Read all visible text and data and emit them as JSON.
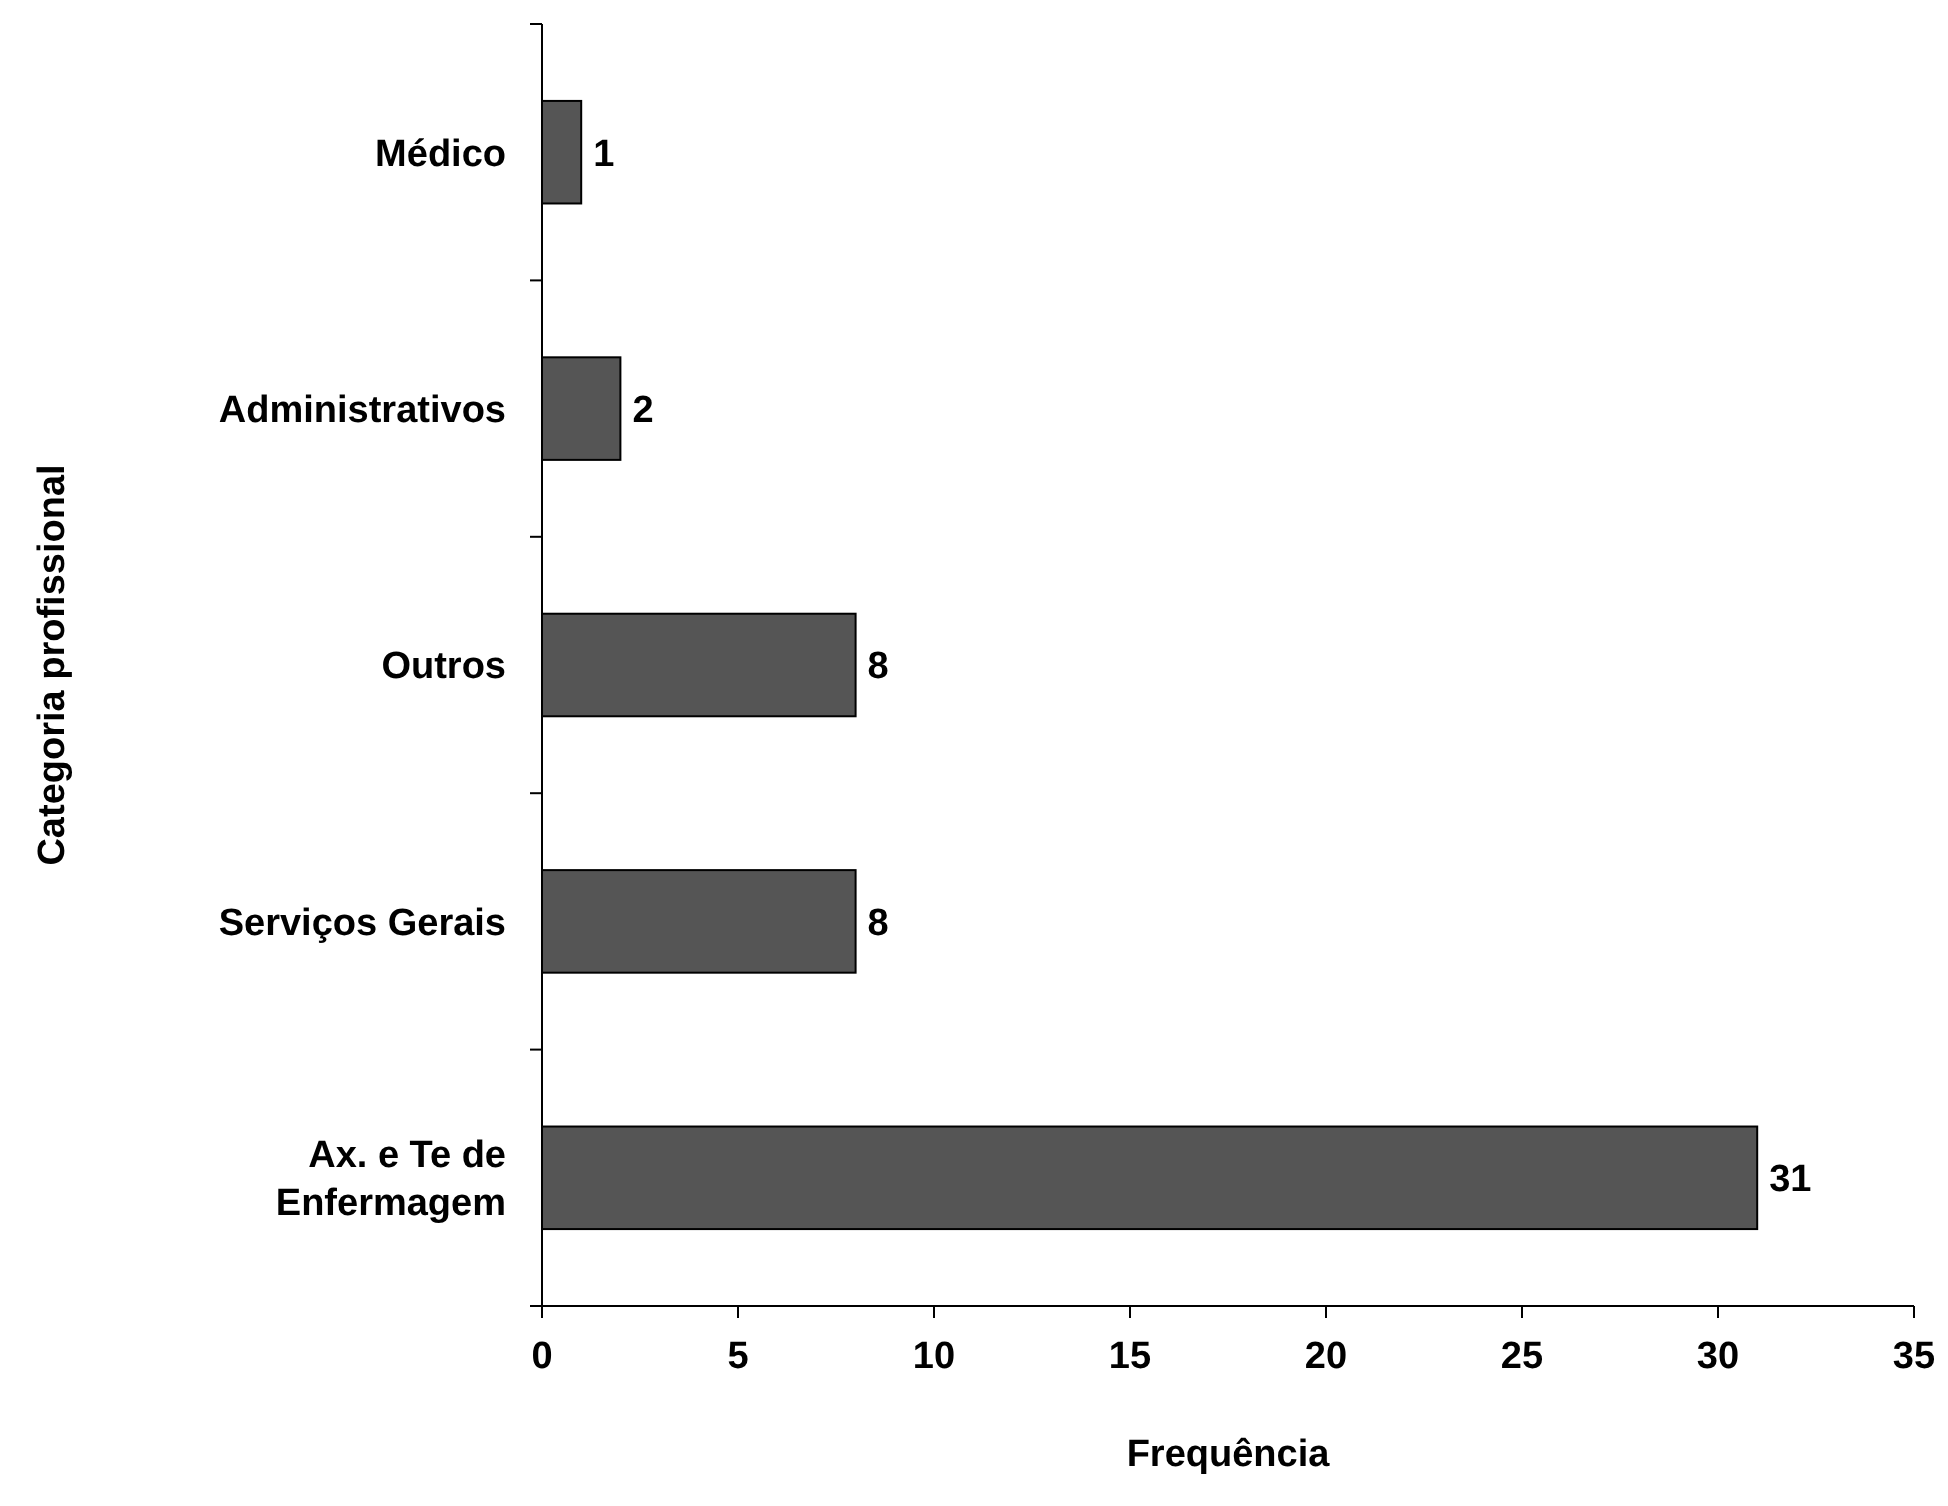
{
  "chart_data": {
    "type": "bar",
    "orientation": "horizontal",
    "xlabel": "Frequência",
    "ylabel": "Categoria profissional",
    "categories": [
      "Médico",
      "Administrativos",
      "Outros",
      "Serviços Gerais",
      "Ax. e Te de Enfermagem"
    ],
    "values": [
      1,
      2,
      8,
      8,
      31
    ],
    "color": "#555555",
    "xlim": [
      0,
      35
    ],
    "xticks": [
      0,
      5,
      10,
      15,
      20,
      25,
      30,
      35
    ],
    "grid": false,
    "data_labels": true
  }
}
